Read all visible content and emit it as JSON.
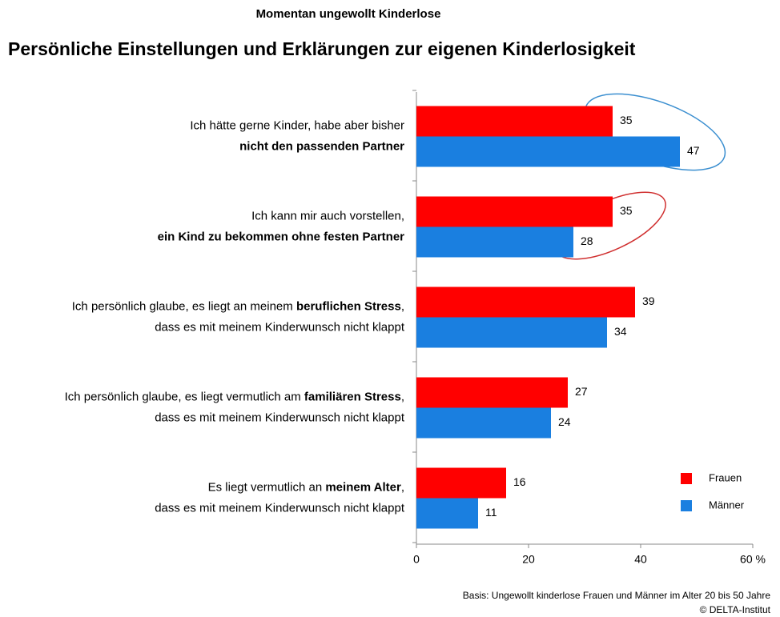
{
  "chart_data": {
    "type": "barh",
    "subtitle": "Momentan ungewollt Kinderlose",
    "title": "Persönliche Einstellungen und Erklärungen zur eigenen Kinderlosigkeit",
    "categories": [
      [
        [
          {
            "text": "Ich hätte gerne Kinder, habe aber bisher",
            "bold": false
          }
        ],
        [
          {
            "text": "nicht den passenden Partner",
            "bold": true
          }
        ]
      ],
      [
        [
          {
            "text": "Ich kann mir auch vorstellen,",
            "bold": false
          }
        ],
        [
          {
            "text": "ein Kind zu bekommen ohne festen Partner",
            "bold": true
          }
        ]
      ],
      [
        [
          {
            "text": "Ich persönlich glaube, es liegt an meinem ",
            "bold": false
          },
          {
            "text": "beruflichen Stress",
            "bold": true
          },
          {
            "text": ",",
            "bold": false
          }
        ],
        [
          {
            "text": "dass es mit meinem Kinderwunsch nicht klappt",
            "bold": false
          }
        ]
      ],
      [
        [
          {
            "text": "Ich persönlich glaube, es liegt vermutlich am ",
            "bold": false
          },
          {
            "text": "familiären Stress",
            "bold": true
          },
          {
            "text": ",",
            "bold": false
          }
        ],
        [
          {
            "text": "dass es mit meinem Kinderwunsch nicht klappt",
            "bold": false
          }
        ]
      ],
      [
        [
          {
            "text": "Es liegt vermutlich an ",
            "bold": false
          },
          {
            "text": "meinem Alter",
            "bold": true
          },
          {
            "text": ",",
            "bold": false
          }
        ],
        [
          {
            "text": "dass es mit meinem Kinderwunsch nicht klappt",
            "bold": false
          }
        ]
      ]
    ],
    "series": [
      {
        "name": "Frauen",
        "color": "#ff0000",
        "values": [
          35,
          35,
          39,
          27,
          16
        ]
      },
      {
        "name": "Männer",
        "color": "#1a7fe0",
        "values": [
          47,
          28,
          34,
          24,
          11
        ]
      }
    ],
    "xlim": [
      0,
      60
    ],
    "xticks": [
      0,
      20,
      40,
      {
        "value": 60,
        "label": "60 %"
      }
    ],
    "legend": "lower right",
    "footnotes": [
      "Basis: Ungewollt kinderlose Frauen und Männer im Alter 20 bis 50 Jahre",
      "© DELTA-Institut"
    ]
  }
}
